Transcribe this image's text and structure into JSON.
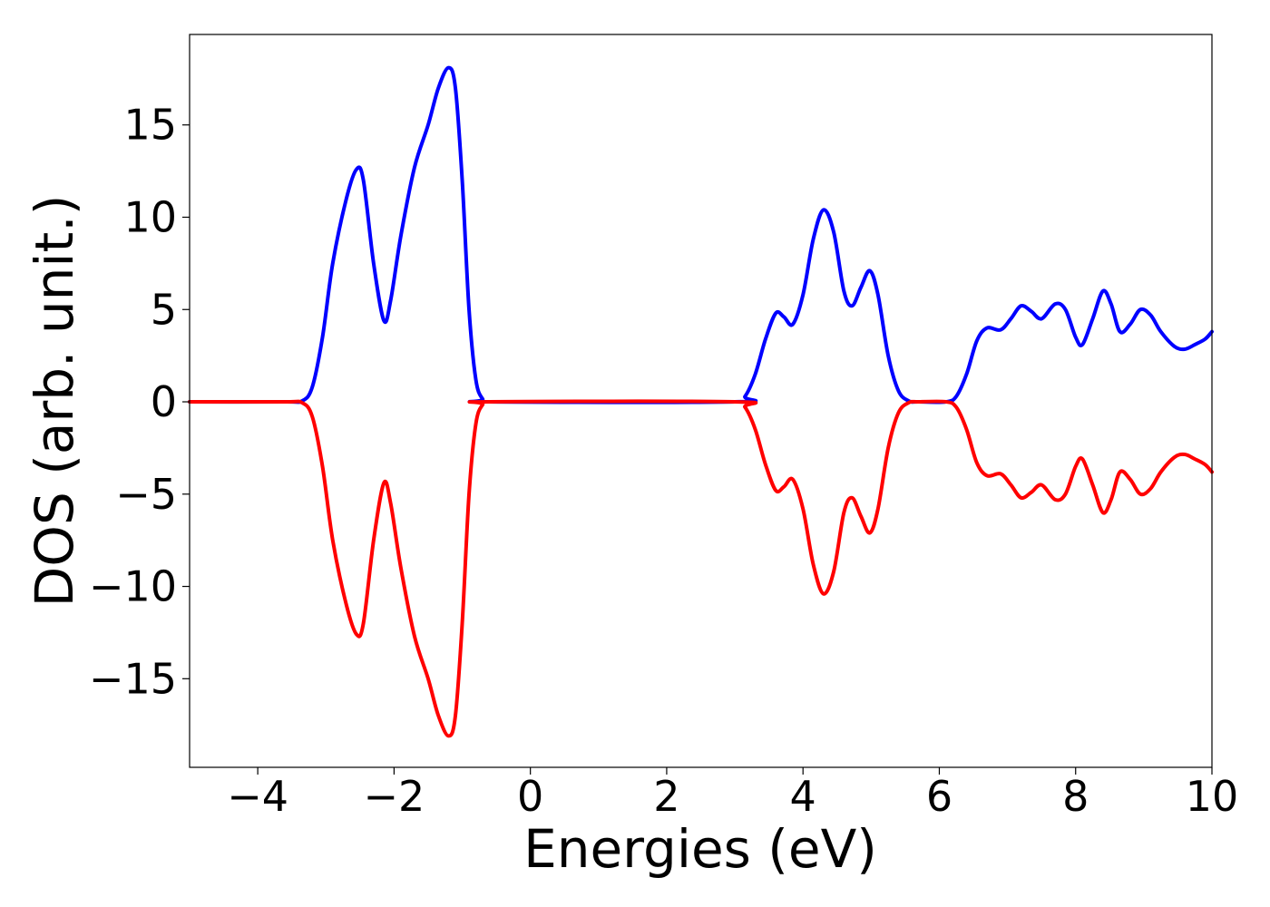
{
  "chart_data": {
    "type": "line",
    "xlabel": "Energies (eV)",
    "ylabel": "DOS (arb. unit.)",
    "xlim": [
      -5,
      10
    ],
    "ylim": [
      -19.8,
      19.9
    ],
    "x_ticks": [
      -4,
      -2,
      0,
      2,
      4,
      6,
      8,
      10
    ],
    "x_tick_labels": [
      "−4",
      "−2",
      "0",
      "2",
      "4",
      "6",
      "8",
      "10"
    ],
    "y_ticks": [
      -15,
      -10,
      -5,
      0,
      5,
      10,
      15
    ],
    "y_tick_labels": [
      "−15",
      "−10",
      "−5",
      "0",
      "5",
      "10",
      "15"
    ],
    "grid": false,
    "series": [
      {
        "color": "#0000ff",
        "points": [
          [
            -5.0,
            0.0
          ],
          [
            -3.6,
            0.0
          ],
          [
            -3.35,
            0.05
          ],
          [
            -3.2,
            0.8
          ],
          [
            -3.05,
            3.5
          ],
          [
            -2.9,
            7.5
          ],
          [
            -2.7,
            11.0
          ],
          [
            -2.55,
            12.6
          ],
          [
            -2.45,
            12.0
          ],
          [
            -2.3,
            7.5
          ],
          [
            -2.15,
            4.4
          ],
          [
            -2.05,
            5.5
          ],
          [
            -1.9,
            9.0
          ],
          [
            -1.7,
            12.7
          ],
          [
            -1.5,
            15.0
          ],
          [
            -1.35,
            17.0
          ],
          [
            -1.2,
            18.1
          ],
          [
            -1.1,
            17.0
          ],
          [
            -1.0,
            12.0
          ],
          [
            -0.9,
            5.0
          ],
          [
            -0.8,
            1.2
          ],
          [
            -0.7,
            0.15
          ],
          [
            -0.6,
            0.0
          ],
          [
            3.0,
            0.0
          ],
          [
            3.15,
            0.3
          ],
          [
            3.3,
            1.5
          ],
          [
            3.45,
            3.4
          ],
          [
            3.6,
            4.8
          ],
          [
            3.72,
            4.6
          ],
          [
            3.85,
            4.2
          ],
          [
            4.0,
            5.8
          ],
          [
            4.15,
            8.8
          ],
          [
            4.3,
            10.4
          ],
          [
            4.45,
            9.2
          ],
          [
            4.6,
            6.0
          ],
          [
            4.72,
            5.2
          ],
          [
            4.85,
            6.2
          ],
          [
            4.98,
            7.1
          ],
          [
            5.1,
            5.8
          ],
          [
            5.25,
            2.5
          ],
          [
            5.4,
            0.6
          ],
          [
            5.55,
            0.05
          ],
          [
            5.7,
            0.0
          ],
          [
            6.1,
            0.0
          ],
          [
            6.25,
            0.3
          ],
          [
            6.4,
            1.5
          ],
          [
            6.55,
            3.3
          ],
          [
            6.7,
            4.0
          ],
          [
            6.9,
            3.9
          ],
          [
            7.05,
            4.5
          ],
          [
            7.2,
            5.2
          ],
          [
            7.35,
            4.9
          ],
          [
            7.5,
            4.5
          ],
          [
            7.7,
            5.3
          ],
          [
            7.85,
            5.0
          ],
          [
            8.0,
            3.5
          ],
          [
            8.1,
            3.1
          ],
          [
            8.25,
            4.5
          ],
          [
            8.4,
            6.0
          ],
          [
            8.52,
            5.3
          ],
          [
            8.65,
            3.8
          ],
          [
            8.8,
            4.2
          ],
          [
            8.95,
            5.0
          ],
          [
            9.1,
            4.7
          ],
          [
            9.25,
            3.8
          ],
          [
            9.45,
            3.0
          ],
          [
            9.6,
            2.85
          ],
          [
            9.75,
            3.1
          ],
          [
            9.9,
            3.4
          ],
          [
            10.0,
            3.8
          ]
        ]
      },
      {
        "color": "#ff0000",
        "points": [
          [
            -5.0,
            0.0
          ],
          [
            -3.6,
            0.0
          ],
          [
            -3.35,
            -0.05
          ],
          [
            -3.2,
            -0.8
          ],
          [
            -3.05,
            -3.5
          ],
          [
            -2.9,
            -7.5
          ],
          [
            -2.7,
            -11.0
          ],
          [
            -2.55,
            -12.6
          ],
          [
            -2.45,
            -12.0
          ],
          [
            -2.3,
            -7.5
          ],
          [
            -2.15,
            -4.4
          ],
          [
            -2.05,
            -5.5
          ],
          [
            -1.9,
            -9.0
          ],
          [
            -1.7,
            -12.7
          ],
          [
            -1.5,
            -15.0
          ],
          [
            -1.35,
            -17.0
          ],
          [
            -1.2,
            -18.1
          ],
          [
            -1.1,
            -17.0
          ],
          [
            -1.0,
            -12.0
          ],
          [
            -0.9,
            -5.0
          ],
          [
            -0.8,
            -1.2
          ],
          [
            -0.7,
            -0.15
          ],
          [
            -0.6,
            0.0
          ],
          [
            3.0,
            0.0
          ],
          [
            3.15,
            -0.3
          ],
          [
            3.3,
            -1.5
          ],
          [
            3.45,
            -3.4
          ],
          [
            3.6,
            -4.8
          ],
          [
            3.72,
            -4.6
          ],
          [
            3.85,
            -4.2
          ],
          [
            4.0,
            -5.8
          ],
          [
            4.15,
            -8.8
          ],
          [
            4.3,
            -10.4
          ],
          [
            4.45,
            -9.2
          ],
          [
            4.6,
            -6.0
          ],
          [
            4.72,
            -5.2
          ],
          [
            4.85,
            -6.2
          ],
          [
            4.98,
            -7.1
          ],
          [
            5.1,
            -5.8
          ],
          [
            5.25,
            -2.5
          ],
          [
            5.4,
            -0.6
          ],
          [
            5.55,
            -0.05
          ],
          [
            5.7,
            0.0
          ],
          [
            6.1,
            0.0
          ],
          [
            6.25,
            -0.3
          ],
          [
            6.4,
            -1.5
          ],
          [
            6.55,
            -3.3
          ],
          [
            6.7,
            -4.0
          ],
          [
            6.9,
            -3.9
          ],
          [
            7.05,
            -4.5
          ],
          [
            7.2,
            -5.2
          ],
          [
            7.35,
            -4.9
          ],
          [
            7.5,
            -4.5
          ],
          [
            7.7,
            -5.3
          ],
          [
            7.85,
            -5.0
          ],
          [
            8.0,
            -3.5
          ],
          [
            8.1,
            -3.1
          ],
          [
            8.25,
            -4.5
          ],
          [
            8.4,
            -6.0
          ],
          [
            8.52,
            -5.3
          ],
          [
            8.65,
            -3.8
          ],
          [
            8.8,
            -4.2
          ],
          [
            8.95,
            -5.0
          ],
          [
            9.1,
            -4.7
          ],
          [
            9.25,
            -3.8
          ],
          [
            9.45,
            -3.0
          ],
          [
            9.6,
            -2.85
          ],
          [
            9.75,
            -3.1
          ],
          [
            9.9,
            -3.4
          ],
          [
            10.0,
            -3.8
          ]
        ]
      }
    ]
  }
}
